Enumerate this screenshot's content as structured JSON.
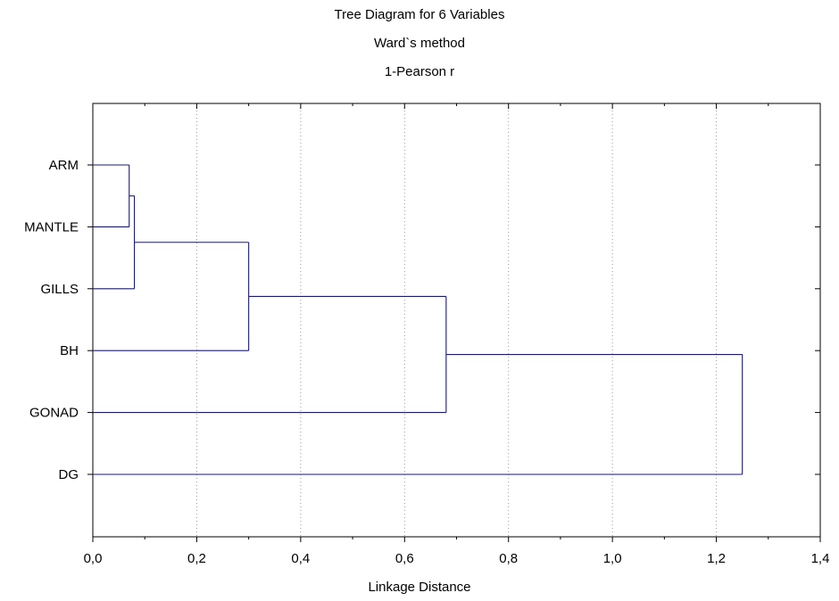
{
  "chart_data": {
    "type": "dendrogram",
    "title": "Tree Diagram for 6 Variables",
    "subtitle": "Ward`s method",
    "subtitle2": "1-Pearson r",
    "xlabel": "Linkage Distance",
    "xlim": [
      0,
      1.4
    ],
    "xticks": [
      "0,0",
      "0,2",
      "0,4",
      "0,6",
      "0,8",
      "1,0",
      "1,2",
      "1,4"
    ],
    "grid": "vertical dotted",
    "leaves": [
      "ARM",
      "MANTLE",
      "GILLS",
      "BH",
      "GONAD",
      "DG"
    ],
    "merges": [
      {
        "left": "ARM",
        "right": "MANTLE",
        "height": 0.07
      },
      {
        "left": "ARM+MANTLE",
        "right": "GILLS",
        "height": 0.08
      },
      {
        "left": "ARM+MANTLE+GILLS",
        "right": "BH",
        "height": 0.3
      },
      {
        "left": "ARM+MANTLE+GILLS+BH",
        "right": "GONAD",
        "height": 0.68
      },
      {
        "left": "ARM+MANTLE+GILLS+BH+GONAD",
        "right": "DG",
        "height": 1.25
      }
    ]
  }
}
